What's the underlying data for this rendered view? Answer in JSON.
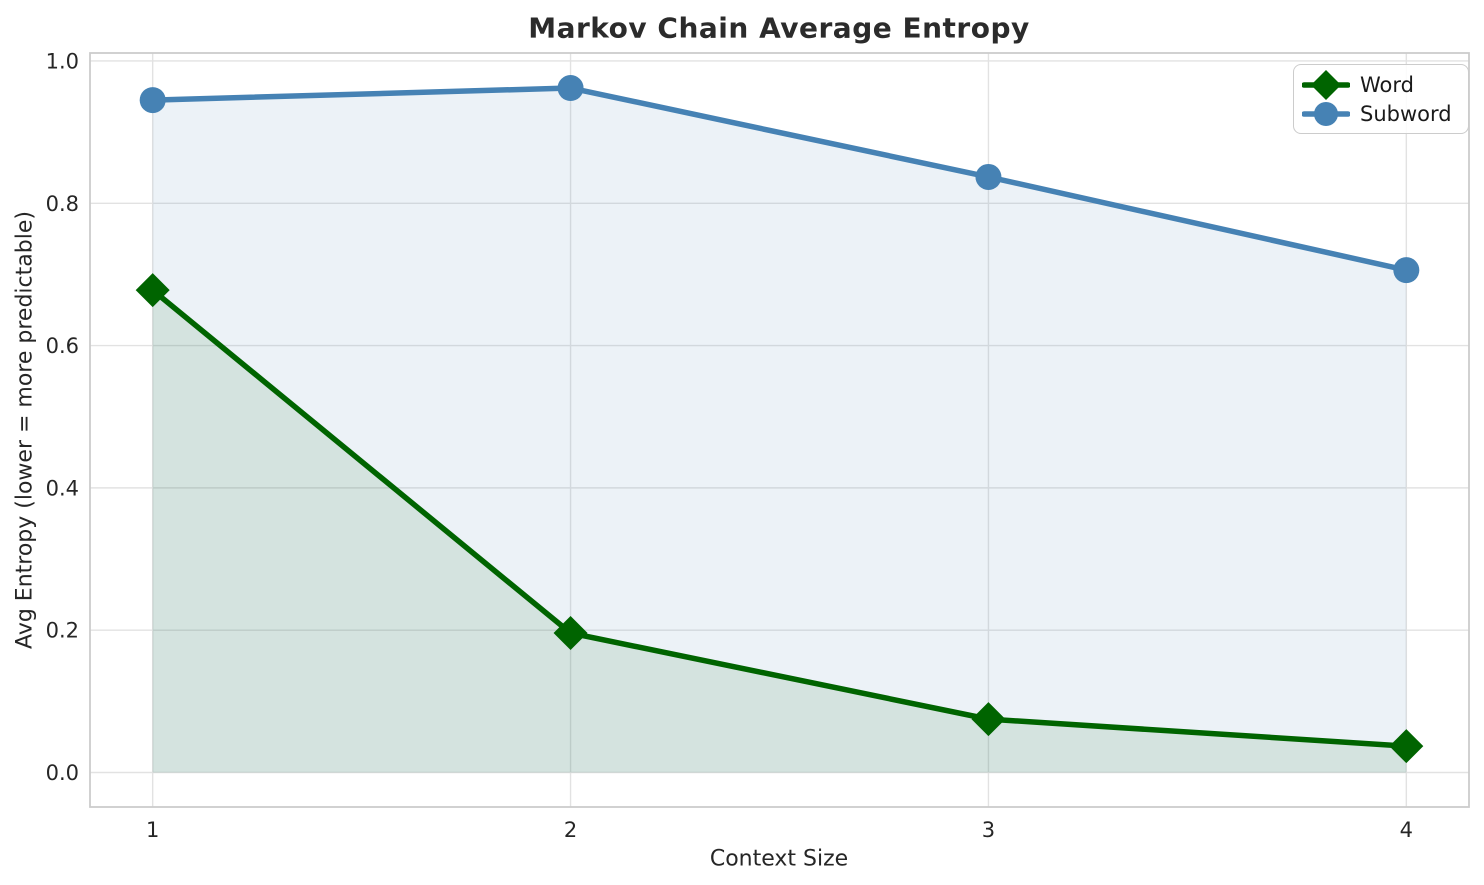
{
  "chart_data": {
    "type": "line",
    "title": "Markov Chain Average Entropy",
    "xlabel": "Context Size",
    "ylabel": "Avg Entropy (lower = more predictable)",
    "x": [
      1,
      2,
      3,
      4
    ],
    "xtick_labels": [
      "1",
      "2",
      "3",
      "4"
    ],
    "yticks": [
      0.0,
      0.2,
      0.4,
      0.6,
      0.8,
      1.0
    ],
    "ytick_labels": [
      "0.0",
      "0.2",
      "0.4",
      "0.6",
      "0.8",
      "1.0"
    ],
    "xlim": [
      0.85,
      4.15
    ],
    "ylim": [
      -0.0485,
      1.0112
    ],
    "grid": true,
    "legend_position": "upper-right",
    "series": [
      {
        "name": "Word",
        "marker": "diamond",
        "color": "#006400",
        "fill_alpha": 0.1,
        "line_width": 5.5,
        "values": [
          0.678,
          0.196,
          0.075,
          0.037
        ]
      },
      {
        "name": "Subword",
        "marker": "circle",
        "color": "#4682b4",
        "fill_alpha": 0.1,
        "line_width": 5.5,
        "values": [
          0.945,
          0.962,
          0.837,
          0.706
        ]
      }
    ],
    "style": {
      "grid_color": "#e2e2e2",
      "spine_color": "#cccccc",
      "tick_label_color": "#262626",
      "background": "#ffffff"
    }
  }
}
